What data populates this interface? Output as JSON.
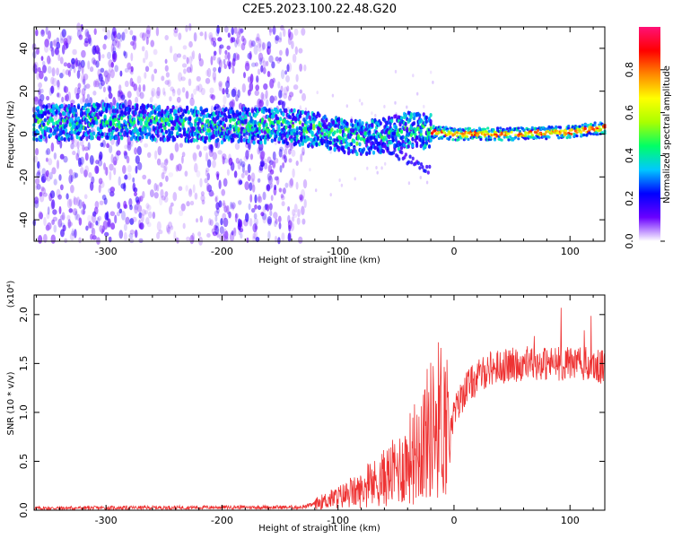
{
  "figure": {
    "title": "C2E5.2023.100.22.48.G20"
  },
  "chart_data": [
    {
      "type": "heatmap",
      "xlabel": "Height of straight line (km)",
      "ylabel": "Frequency (Hz)",
      "xlim": [
        -362,
        130
      ],
      "ylim": [
        -50,
        50
      ],
      "x_ticks": [
        -300,
        -200,
        -100,
        0,
        100
      ],
      "y_ticks": [
        -40,
        -20,
        0,
        20,
        40
      ],
      "grid": false,
      "colorbar": {
        "label": "Normalized spectral amplitude",
        "ticks": [
          "0.0",
          "0.2",
          "0.4",
          "0.6",
          "0.8"
        ],
        "range": [
          0,
          1
        ],
        "colormap": [
          "#ffffff",
          "#6a00ff",
          "#0000ff",
          "#00c8ff",
          "#00ff66",
          "#aaff00",
          "#ffff00",
          "#ff8800",
          "#ff0000",
          "#ff1177"
        ]
      },
      "ridge": [
        {
          "x": -355,
          "y": 5
        },
        {
          "x": -300,
          "y": 6
        },
        {
          "x": -250,
          "y": 5
        },
        {
          "x": -200,
          "y": 4
        },
        {
          "x": -150,
          "y": 4
        },
        {
          "x": -120,
          "y": 2
        },
        {
          "x": -100,
          "y": 0
        },
        {
          "x": -80,
          "y": -2
        },
        {
          "x": -60,
          "y": -1
        },
        {
          "x": -40,
          "y": 2
        },
        {
          "x": -20,
          "y": 1
        },
        {
          "x": 0,
          "y": 0
        },
        {
          "x": 50,
          "y": 0
        },
        {
          "x": 100,
          "y": 1
        },
        {
          "x": 130,
          "y": 3
        }
      ]
    },
    {
      "type": "line",
      "xlabel": "Height of straight line (km)",
      "ylabel": "SNR (10 * v/v)",
      "yscale_label": "(x10⁴)",
      "xlim": [
        -362,
        130
      ],
      "ylim": [
        0,
        2.2
      ],
      "x_ticks": [
        -300,
        -200,
        -100,
        0,
        100
      ],
      "y_ticks": [
        "0.0",
        "0.5",
        "1.0",
        "1.5",
        "2.0"
      ],
      "series_color": "#ee3333",
      "grid": false,
      "envelope": [
        {
          "x": -362,
          "y": 0.02
        },
        {
          "x": -200,
          "y": 0.03
        },
        {
          "x": -130,
          "y": 0.03
        },
        {
          "x": -110,
          "y": 0.1
        },
        {
          "x": -80,
          "y": 0.2
        },
        {
          "x": -50,
          "y": 0.4
        },
        {
          "x": -40,
          "y": 0.5
        },
        {
          "x": -25,
          "y": 0.75
        },
        {
          "x": -12,
          "y": 0.95
        },
        {
          "x": -3,
          "y": 0.9
        },
        {
          "x": 10,
          "y": 1.25
        },
        {
          "x": 30,
          "y": 1.45
        },
        {
          "x": 60,
          "y": 1.5
        },
        {
          "x": 90,
          "y": 1.5
        },
        {
          "x": 110,
          "y": 1.5
        },
        {
          "x": 130,
          "y": 1.45
        }
      ]
    }
  ]
}
